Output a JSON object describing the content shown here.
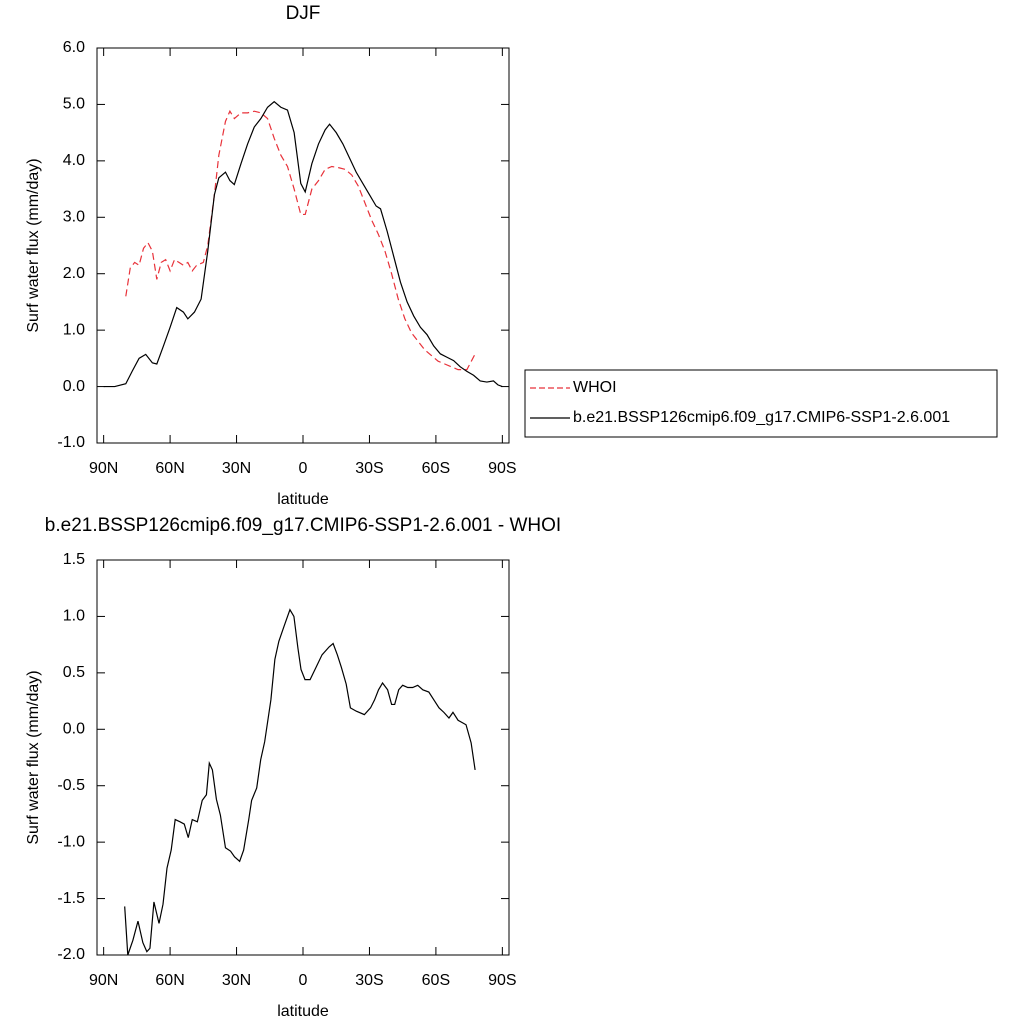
{
  "chart_data": [
    {
      "type": "line",
      "title": "DJF",
      "x_label": "latitude",
      "y_label": "Surf water flux (mm/day)",
      "xlim": [
        93,
        -93
      ],
      "xticks": [
        {
          "value": 90,
          "label": "90N"
        },
        {
          "value": 60,
          "label": "60N"
        },
        {
          "value": 30,
          "label": "30N"
        },
        0,
        {
          "value": -30,
          "label": "30S"
        },
        {
          "value": -60,
          "label": "60S"
        },
        {
          "value": -90,
          "label": "90S"
        }
      ],
      "ylim": [
        -1,
        6
      ],
      "yticks": [
        {
          "value": -1,
          "label": "-1.0"
        },
        {
          "value": 0,
          "label": "0.0"
        },
        {
          "value": 1,
          "label": "1.0"
        },
        {
          "value": 2,
          "label": "2.0"
        },
        {
          "value": 3,
          "label": "3.0"
        },
        {
          "value": 4,
          "label": "4.0"
        },
        {
          "value": 5,
          "label": "5.0"
        },
        {
          "value": 6,
          "label": "6.0"
        }
      ],
      "series": [
        {
          "name": "WHOI",
          "color": "#e8323a",
          "line_style": "dashed",
          "x": [
            80,
            78,
            76,
            74,
            72,
            70,
            68,
            66,
            64,
            62,
            60,
            58,
            56,
            54,
            52,
            50,
            48,
            45,
            43,
            40,
            38,
            35,
            33,
            31,
            28,
            25,
            22,
            19,
            16,
            13,
            10,
            7,
            4,
            1,
            -1,
            -4,
            -7,
            -10,
            -13,
            -16,
            -19,
            -22,
            -25,
            -28,
            -31,
            -34,
            -37,
            -40,
            -43,
            -46,
            -49,
            -52,
            -55,
            -58,
            -61,
            -64,
            -67,
            -70,
            -72,
            -74,
            -76,
            -78
          ],
          "values": [
            1.6,
            2.1,
            2.2,
            2.15,
            2.45,
            2.55,
            2.4,
            1.9,
            2.2,
            2.25,
            2.05,
            2.25,
            2.2,
            2.15,
            2.2,
            2.05,
            2.15,
            2.2,
            2.5,
            3.4,
            4.1,
            4.7,
            4.88,
            4.75,
            4.85,
            4.85,
            4.88,
            4.85,
            4.75,
            4.4,
            4.1,
            3.9,
            3.5,
            3.05,
            3.05,
            3.5,
            3.65,
            3.85,
            3.9,
            3.88,
            3.85,
            3.75,
            3.55,
            3.25,
            2.95,
            2.7,
            2.4,
            2.0,
            1.55,
            1.2,
            0.95,
            0.8,
            0.65,
            0.55,
            0.45,
            0.4,
            0.35,
            0.3,
            0.3,
            0.3,
            0.45,
            0.6
          ]
        },
        {
          "name": "b.e21.BSSP126cmip6.f09_g17.CMIP6-SSP1-2.6.001",
          "color": "#000000",
          "line_style": "solid",
          "x": [
            90,
            85,
            80,
            77,
            74,
            71,
            68,
            66,
            63,
            60,
            57,
            54,
            52,
            49,
            46,
            43,
            40,
            38,
            35,
            33,
            31,
            28,
            25,
            22,
            19,
            16,
            13,
            10,
            7,
            4,
            1,
            -1,
            -4,
            -7,
            -10,
            -12,
            -15,
            -18,
            -21,
            -24,
            -27,
            -30,
            -33,
            -35,
            -38,
            -41,
            -44,
            -47,
            -50,
            -53,
            -56,
            -59,
            -62,
            -65,
            -68,
            -71,
            -74,
            -77,
            -80,
            -83,
            -86,
            -88,
            -90
          ],
          "values": [
            0.0,
            0.0,
            0.05,
            0.28,
            0.5,
            0.57,
            0.42,
            0.4,
            0.72,
            1.05,
            1.4,
            1.32,
            1.2,
            1.32,
            1.55,
            2.4,
            3.4,
            3.7,
            3.8,
            3.65,
            3.58,
            3.95,
            4.3,
            4.6,
            4.75,
            4.95,
            5.05,
            4.95,
            4.9,
            4.5,
            3.6,
            3.45,
            3.95,
            4.3,
            4.55,
            4.65,
            4.5,
            4.3,
            4.05,
            3.8,
            3.6,
            3.4,
            3.2,
            3.15,
            2.75,
            2.3,
            1.85,
            1.5,
            1.25,
            1.05,
            0.92,
            0.72,
            0.58,
            0.52,
            0.46,
            0.35,
            0.27,
            0.2,
            0.1,
            0.08,
            0.1,
            0.03,
            0.0
          ]
        }
      ]
    },
    {
      "type": "line",
      "title": "b.e21.BSSP126cmip6.f09_g17.CMIP6-SSP1-2.6.001 - WHOI",
      "x_label": "latitude",
      "y_label": "Surf water flux (mm/day)",
      "xlim": [
        93,
        -93
      ],
      "xticks": [
        {
          "value": 90,
          "label": "90N"
        },
        {
          "value": 60,
          "label": "60N"
        },
        {
          "value": 30,
          "label": "30N"
        },
        0,
        {
          "value": -30,
          "label": "30S"
        },
        {
          "value": -60,
          "label": "60S"
        },
        {
          "value": -90,
          "label": "90S"
        }
      ],
      "ylim": [
        -2,
        1.5
      ],
      "yticks": [
        {
          "value": -2,
          "label": "-2.0"
        },
        -1.5,
        {
          "value": -1,
          "label": "-1.0"
        },
        -0.5,
        {
          "value": 0,
          "label": "0.0"
        },
        0.5,
        {
          "value": 1,
          "label": "1.0"
        },
        1.5
      ],
      "series": [
        {
          "color": "#000000",
          "line_style": "solid",
          "x": [
            80.5,
            79.1,
            76.8,
            74.5,
            72.3,
            70.5,
            69.1,
            67.3,
            65.0,
            63.2,
            61.4,
            59.5,
            57.7,
            55.5,
            53.6,
            51.8,
            50.0,
            47.7,
            45.5,
            43.6,
            42.3,
            40.9,
            39.1,
            37.3,
            35.0,
            32.7,
            30.9,
            28.6,
            26.8,
            24.5,
            23.2,
            20.9,
            19.1,
            17.3,
            14.5,
            12.7,
            10.9,
            8.6,
            5.9,
            4.1,
            2.3,
            0.9,
            -0.9,
            -3.2,
            -5.9,
            -8.6,
            -11.8,
            -13.6,
            -15.5,
            -17.3,
            -19.5,
            -21.4,
            -24.1,
            -27.7,
            -30.5,
            -32.3,
            -34.1,
            -35.9,
            -38.2,
            -40.0,
            -41.4,
            -43.2,
            -45.0,
            -47.3,
            -49.5,
            -51.8,
            -54.1,
            -56.8,
            -59.1,
            -61.4,
            -63.6,
            -65.9,
            -67.7,
            -70.0,
            -71.8,
            -73.6,
            -75.9,
            -77.7
          ],
          "values": [
            -1.57,
            -2.0,
            -1.87,
            -1.7,
            -1.89,
            -1.97,
            -1.94,
            -1.53,
            -1.72,
            -1.55,
            -1.23,
            -1.07,
            -0.8,
            -0.82,
            -0.84,
            -0.96,
            -0.8,
            -0.82,
            -0.63,
            -0.58,
            -0.3,
            -0.36,
            -0.62,
            -0.76,
            -1.05,
            -1.08,
            -1.13,
            -1.17,
            -1.07,
            -0.8,
            -0.63,
            -0.52,
            -0.27,
            -0.11,
            0.26,
            0.62,
            0.78,
            0.91,
            1.06,
            1.0,
            0.72,
            0.53,
            0.44,
            0.44,
            0.55,
            0.66,
            0.73,
            0.76,
            0.66,
            0.55,
            0.4,
            0.19,
            0.16,
            0.13,
            0.19,
            0.26,
            0.35,
            0.41,
            0.35,
            0.22,
            0.22,
            0.35,
            0.39,
            0.37,
            0.37,
            0.39,
            0.35,
            0.33,
            0.26,
            0.19,
            0.15,
            0.1,
            0.15,
            0.08,
            0.06,
            0.04,
            -0.12,
            -0.36
          ]
        }
      ]
    }
  ]
}
